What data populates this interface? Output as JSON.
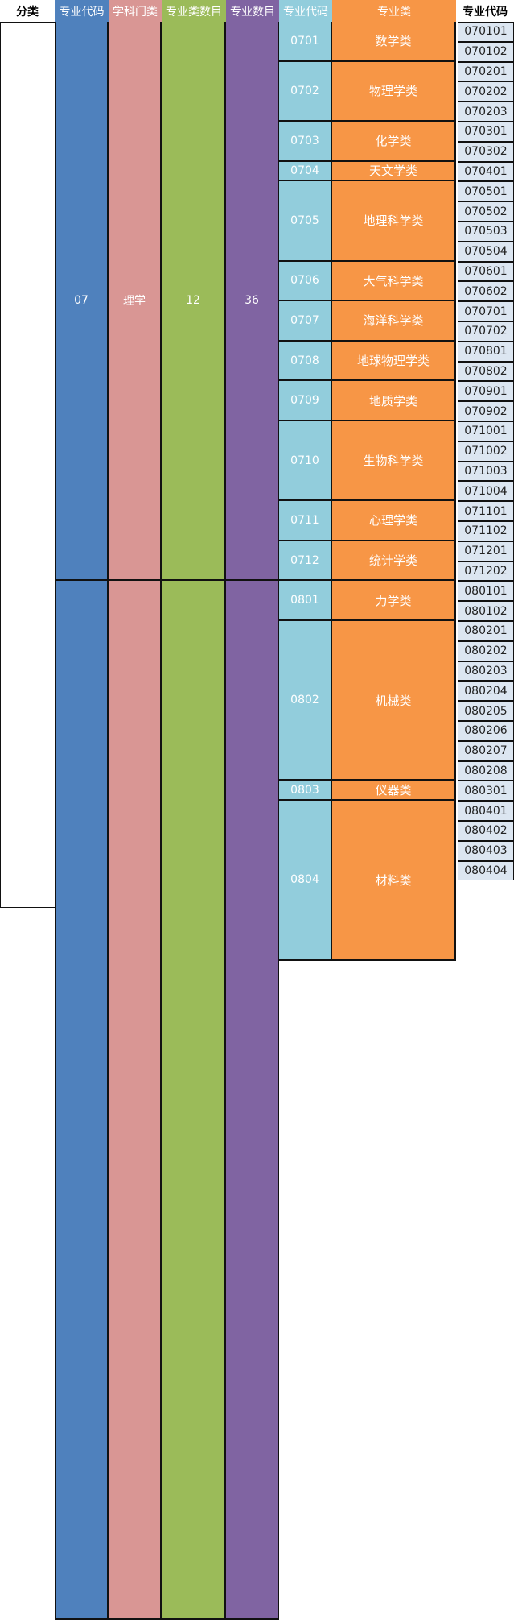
{
  "headers": [
    "分类",
    "专业代码",
    "学科门类",
    "专业类数目",
    "专业数目",
    "专业代码",
    "专业类",
    "专业代码"
  ],
  "colors": {
    "blue": "#4f81bd",
    "pink": "#d99694",
    "green": "#9bbb59",
    "purple": "#8064a2",
    "lightblue": "#92cddc",
    "orange": "#f79646",
    "code_bg": "#dce6f1"
  },
  "disciplines": [
    {
      "code": "07",
      "name": "理学",
      "class_count": "12",
      "major_count": "36"
    },
    {
      "code": "",
      "name": "",
      "class_count": "",
      "major_count": ""
    }
  ],
  "groups": [
    {
      "code": "0701",
      "name": "数学类",
      "codes": [
        "070101",
        "070102"
      ]
    },
    {
      "code": "0702",
      "name": "物理学类",
      "codes": [
        "070201",
        "070202",
        "070203"
      ]
    },
    {
      "code": "0703",
      "name": "化学类",
      "codes": [
        "070301",
        "070302"
      ]
    },
    {
      "code": "0704",
      "name": "天文学类",
      "codes": [
        "070401"
      ]
    },
    {
      "code": "0705",
      "name": "地理科学类",
      "codes": [
        "070501",
        "070502",
        "070503",
        "070504"
      ]
    },
    {
      "code": "0706",
      "name": "大气科学类",
      "codes": [
        "070601",
        "070602"
      ]
    },
    {
      "code": "0707",
      "name": "海洋科学类",
      "codes": [
        "070701",
        "070702"
      ]
    },
    {
      "code": "0708",
      "name": "地球物理学类",
      "codes": [
        "070801",
        "070802"
      ]
    },
    {
      "code": "0709",
      "name": "地质学类",
      "codes": [
        "070901",
        "070902"
      ]
    },
    {
      "code": "0710",
      "name": "生物科学类",
      "codes": [
        "071001",
        "071002",
        "071003",
        "071004"
      ]
    },
    {
      "code": "0711",
      "name": "心理学类",
      "codes": [
        "071101",
        "071102"
      ]
    },
    {
      "code": "0712",
      "name": "统计学类",
      "codes": [
        "071201",
        "071202"
      ]
    },
    {
      "code": "0801",
      "name": "力学类",
      "codes": [
        "080101",
        "080102"
      ]
    },
    {
      "code": "0802",
      "name": "机械类",
      "codes": [
        "080201",
        "080202",
        "080203",
        "080204",
        "080205",
        "080206",
        "080207",
        "080208"
      ]
    },
    {
      "code": "0803",
      "name": "仪器类",
      "codes": [
        "080301"
      ]
    },
    {
      "code": "0804",
      "name": "材料类",
      "codes": [
        "080401",
        "080402",
        "080403",
        "080404"
      ]
    }
  ]
}
